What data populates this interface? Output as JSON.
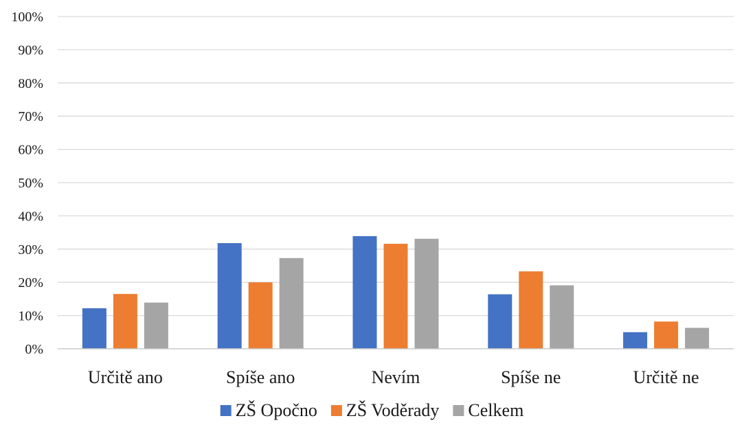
{
  "chart_data": {
    "type": "bar",
    "title": "",
    "xlabel": "",
    "ylabel": "",
    "categories": [
      "Určitě ano",
      "Spíše ano",
      "Nevím",
      "Spíše ne",
      "Určitě ne"
    ],
    "series": [
      {
        "name": "ZŠ Opočno",
        "color": "#4472c4",
        "values": [
          12.2,
          31.8,
          33.9,
          16.4,
          5.0
        ]
      },
      {
        "name": "ZŠ Voděrady",
        "color": "#ed7d31",
        "values": [
          16.5,
          20.0,
          31.6,
          23.3,
          8.2
        ]
      },
      {
        "name": "Celkem",
        "color": "#a5a5a5",
        "values": [
          13.9,
          27.3,
          33.1,
          19.1,
          6.3
        ]
      }
    ],
    "ylim": [
      0,
      100
    ],
    "y_ticks": [
      "0%",
      "10%",
      "20%",
      "30%",
      "40%",
      "50%",
      "60%",
      "70%",
      "80%",
      "90%",
      "100%"
    ],
    "grid": true,
    "legend_position": "bottom"
  }
}
